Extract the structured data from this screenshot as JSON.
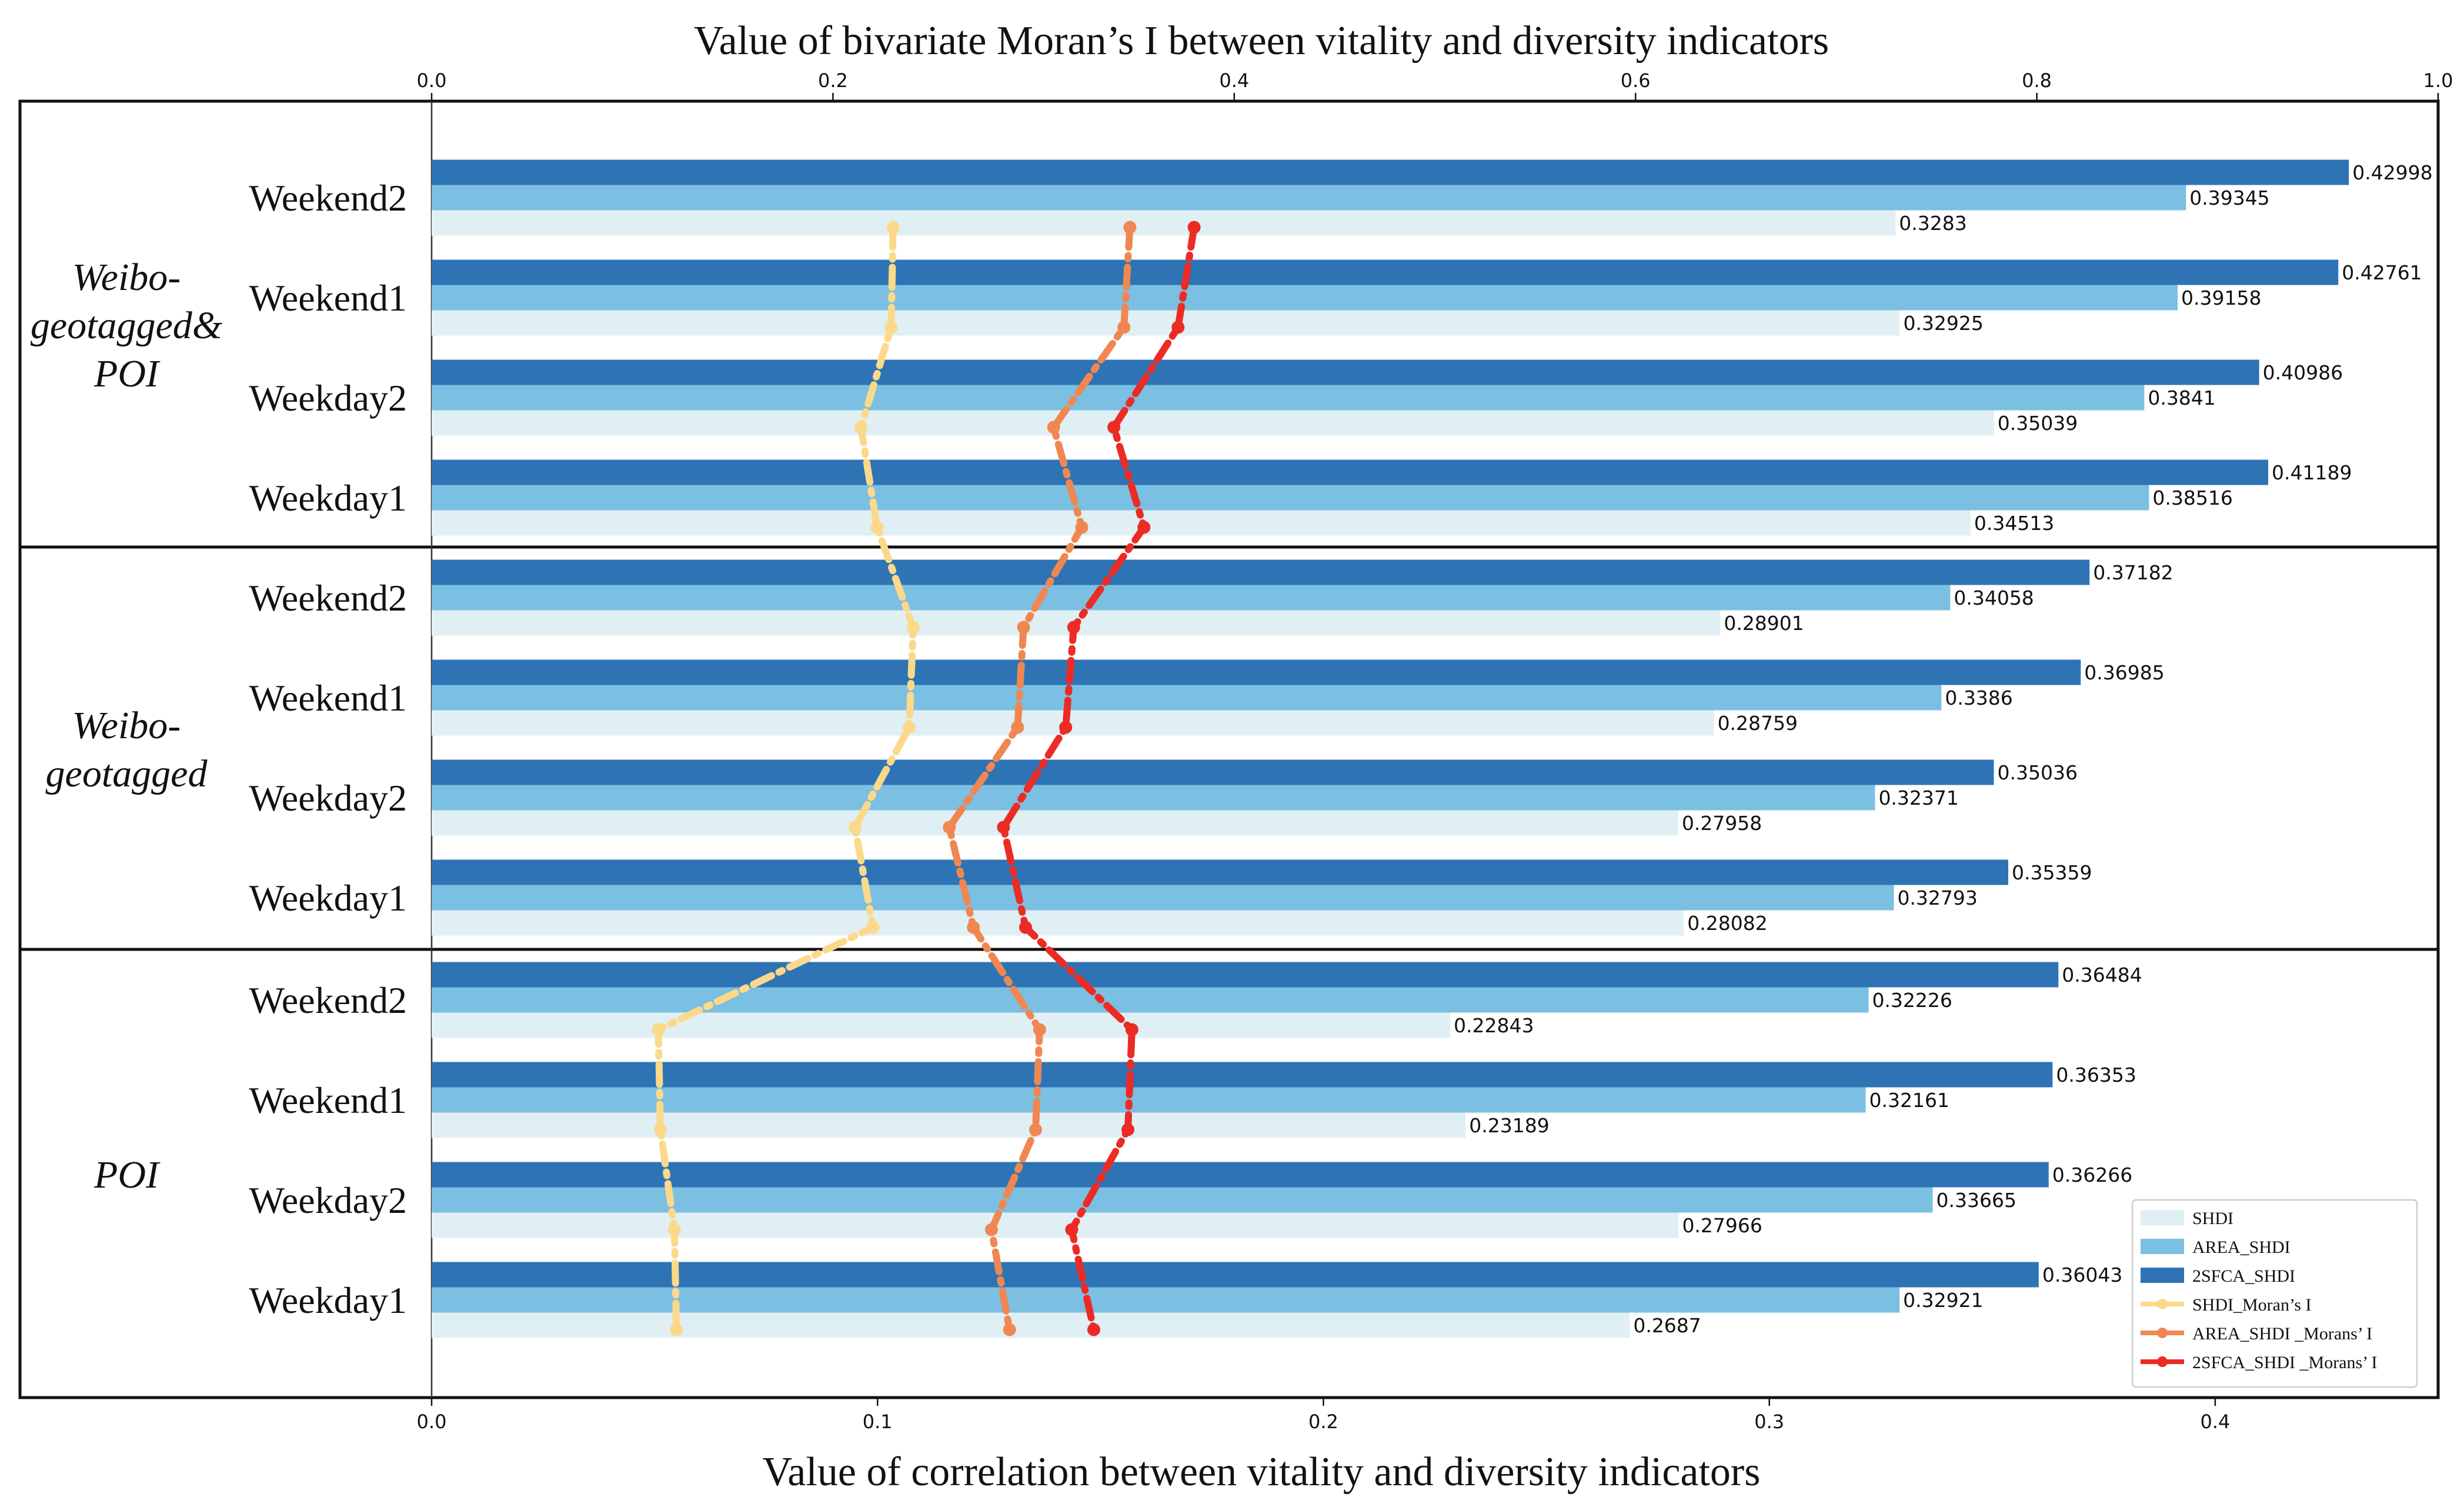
{
  "chart_data": {
    "type": "bar",
    "title_top": "Value of bivariate Moran’s I between vitality and diversity indicators",
    "xlabel_bottom": "Value of correlation between vitality and diversity indicators",
    "top_axis": {
      "range": [
        0.0,
        1.0
      ],
      "ticks": [
        "0.0",
        "0.2",
        "0.4",
        "0.6",
        "0.8",
        "1.0"
      ]
    },
    "bottom_axis": {
      "range": [
        0.0,
        0.45
      ],
      "ticks": [
        "0.0",
        "0.1",
        "0.2",
        "0.3",
        "0.4"
      ]
    },
    "groups": [
      {
        "name_lines": [
          "Weibo-",
          "geotagged&",
          "POI"
        ],
        "categories": [
          {
            "label": "Weekend2",
            "shdi": 0.3283,
            "area": 0.39345,
            "sfca": 0.42998,
            "m_shdi": 0.23,
            "m_area": 0.348,
            "m_sfca": 0.38
          },
          {
            "label": "Weekend1",
            "shdi": 0.32925,
            "area": 0.39158,
            "sfca": 0.42761,
            "m_shdi": 0.229,
            "m_area": 0.345,
            "m_sfca": 0.372
          },
          {
            "label": "Weekday2",
            "shdi": 0.35039,
            "area": 0.3841,
            "sfca": 0.40986,
            "m_shdi": 0.214,
            "m_area": 0.31,
            "m_sfca": 0.34
          },
          {
            "label": "Weekday1",
            "shdi": 0.34513,
            "area": 0.38516,
            "sfca": 0.41189,
            "m_shdi": 0.222,
            "m_area": 0.324,
            "m_sfca": 0.355
          }
        ]
      },
      {
        "name_lines": [
          "Weibo-",
          "geotagged"
        ],
        "categories": [
          {
            "label": "Weekend2",
            "shdi": 0.28901,
            "area": 0.34058,
            "sfca": 0.37182,
            "m_shdi": 0.24,
            "m_area": 0.295,
            "m_sfca": 0.32
          },
          {
            "label": "Weekend1",
            "shdi": 0.28759,
            "area": 0.3386,
            "sfca": 0.36985,
            "m_shdi": 0.238,
            "m_area": 0.292,
            "m_sfca": 0.316
          },
          {
            "label": "Weekday2",
            "shdi": 0.27958,
            "area": 0.32371,
            "sfca": 0.35036,
            "m_shdi": 0.211,
            "m_area": 0.258,
            "m_sfca": 0.285
          },
          {
            "label": "Weekday1",
            "shdi": 0.28082,
            "area": 0.32793,
            "sfca": 0.35359,
            "m_shdi": 0.22,
            "m_area": 0.27,
            "m_sfca": 0.296
          }
        ]
      },
      {
        "name_lines": [
          "POI"
        ],
        "categories": [
          {
            "label": "Weekend2",
            "shdi": 0.22843,
            "area": 0.32226,
            "sfca": 0.36484,
            "m_shdi": 0.113,
            "m_area": 0.303,
            "m_sfca": 0.349
          },
          {
            "label": "Weekend1",
            "shdi": 0.23189,
            "area": 0.32161,
            "sfca": 0.36353,
            "m_shdi": 0.114,
            "m_area": 0.301,
            "m_sfca": 0.347
          },
          {
            "label": "Weekday2",
            "shdi": 0.27966,
            "area": 0.33665,
            "sfca": 0.36266,
            "m_shdi": 0.121,
            "m_area": 0.279,
            "m_sfca": 0.319
          },
          {
            "label": "Weekday1",
            "shdi": 0.2687,
            "area": 0.32921,
            "sfca": 0.36043,
            "m_shdi": 0.122,
            "m_area": 0.288,
            "m_sfca": 0.33
          }
        ]
      }
    ],
    "series": [
      {
        "key": "shdi",
        "name": "SHDI",
        "kind": "bar",
        "color": "#e0eff3"
      },
      {
        "key": "area",
        "name": "AREA_SHDI",
        "kind": "bar",
        "color": "#7bbfe2"
      },
      {
        "key": "sfca",
        "name": "2SFCA_SHDI",
        "kind": "bar",
        "color": "#2e74b5"
      },
      {
        "key": "m_shdi",
        "name": "SHDI_Moran’s I",
        "kind": "line",
        "color": "#fcd98a"
      },
      {
        "key": "m_area",
        "name": "AREA_SHDI _Morans’ I",
        "kind": "line",
        "color": "#f08752"
      },
      {
        "key": "m_sfca",
        "name": "2SFCA_SHDI _Morans’ I",
        "kind": "line",
        "color": "#ec2b24"
      }
    ],
    "legend_position": "bottom-right",
    "grid": false
  }
}
